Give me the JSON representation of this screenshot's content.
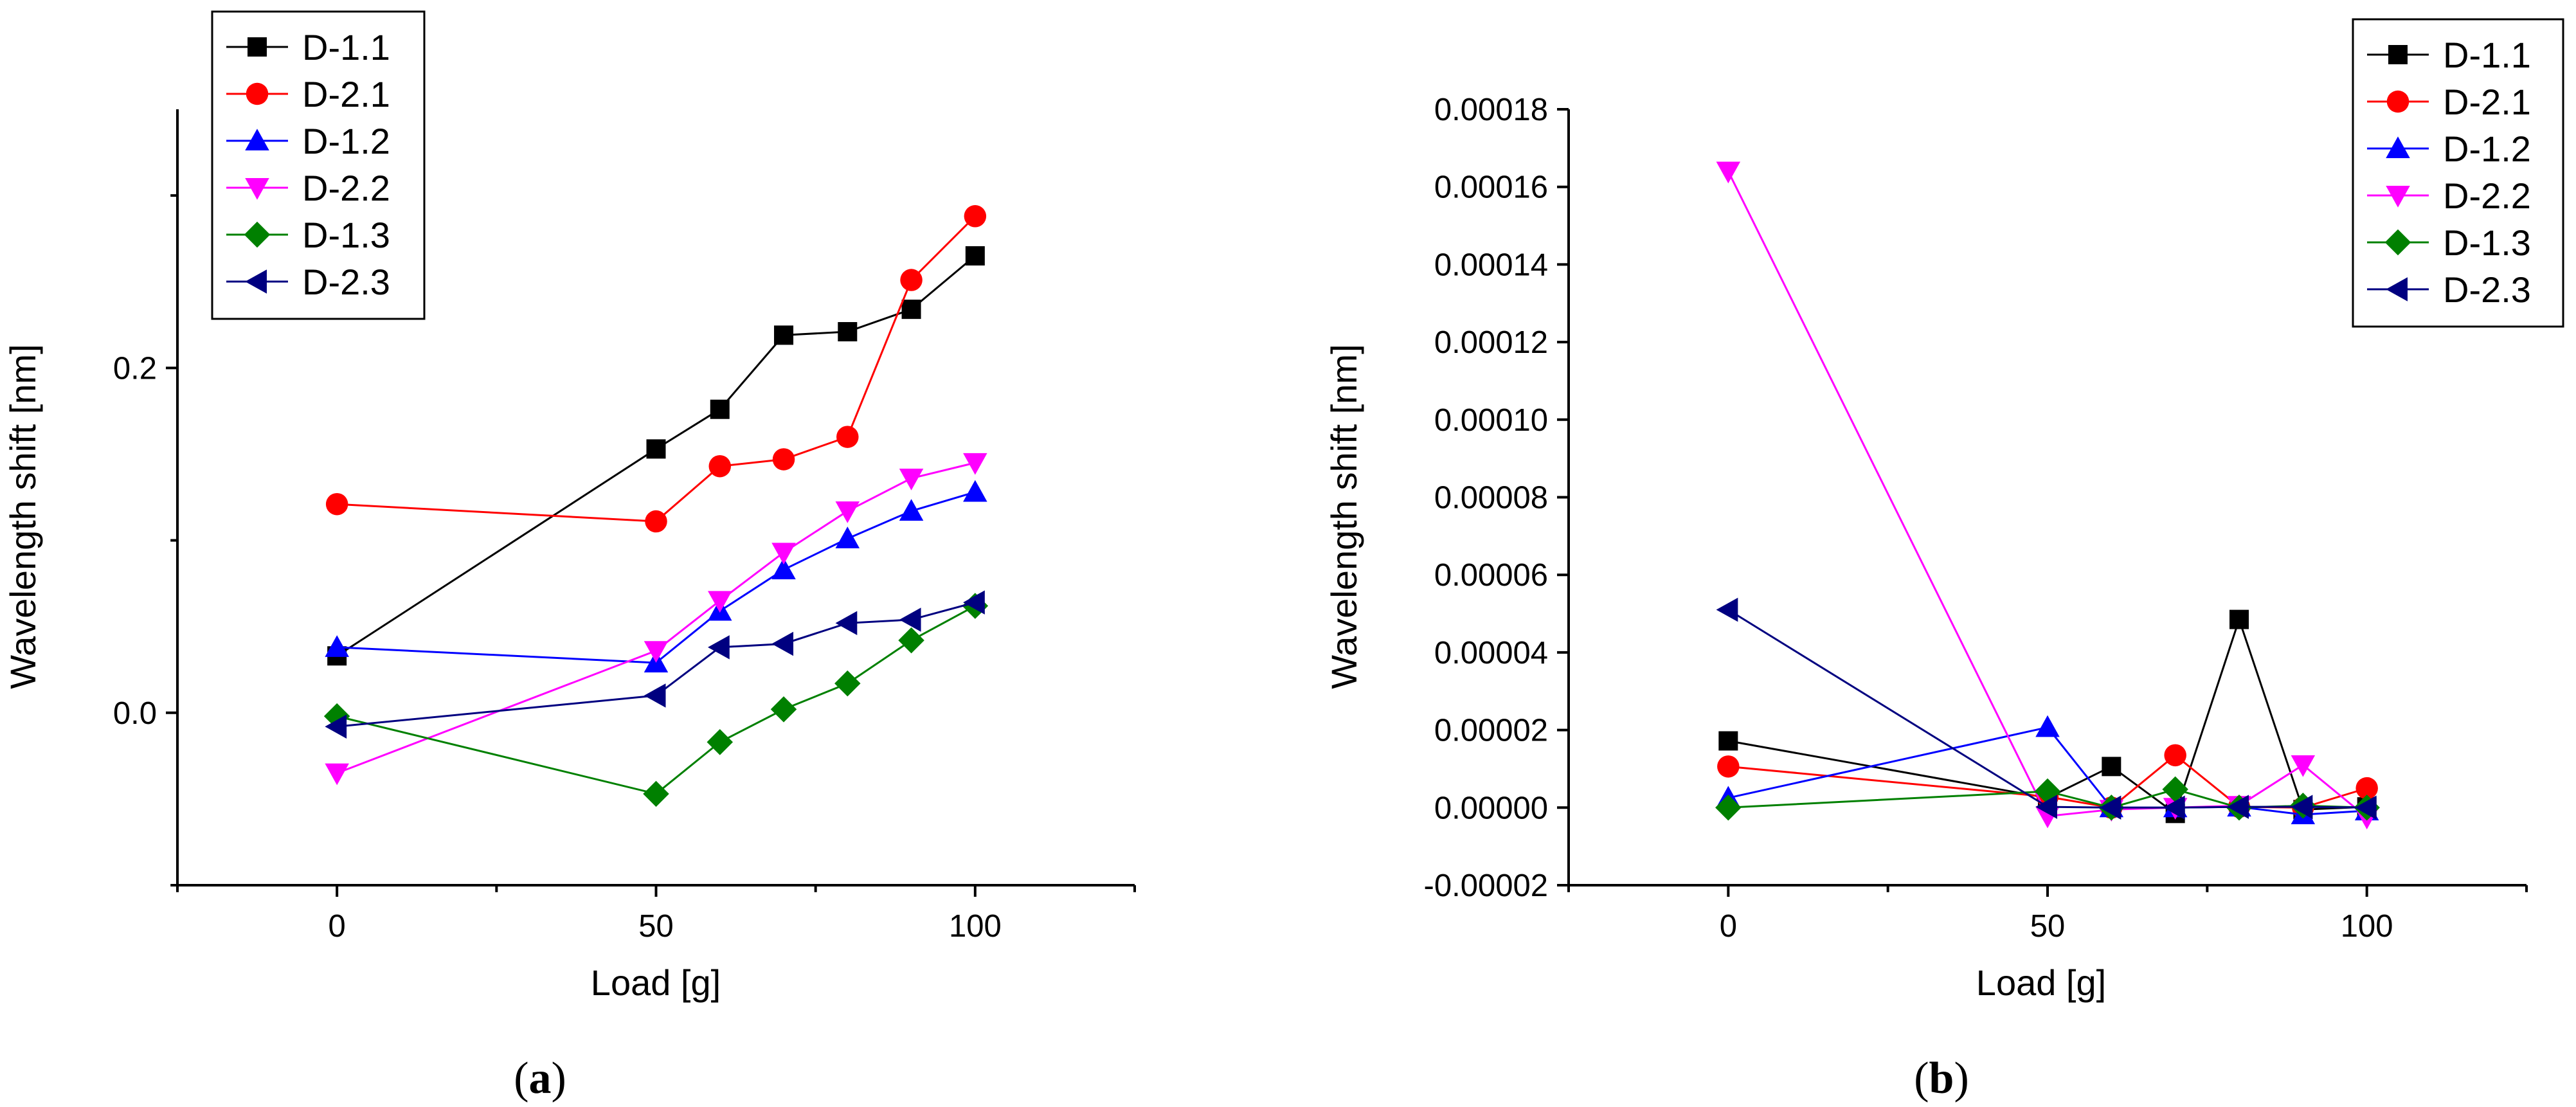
{
  "chart_data": [
    {
      "panel": "a",
      "type": "line",
      "title": "",
      "xlabel": "Load [g]",
      "ylabel": "Wavelength shift [nm]",
      "xlim": [
        -25,
        125
      ],
      "ylim": [
        -0.1,
        0.35
      ],
      "xticks": [
        0,
        50,
        100
      ],
      "yticks": [
        0.0,
        0.2
      ],
      "yticklabels": [
        "0.0",
        "0.2"
      ],
      "legend_position": "top-left",
      "x": [
        0,
        50,
        60,
        70,
        80,
        90,
        100
      ],
      "series": [
        {
          "name": "D-1.1",
          "color": "#000000",
          "marker": "square",
          "values": [
            0.033,
            0.153,
            0.176,
            0.219,
            0.221,
            0.234,
            0.265
          ]
        },
        {
          "name": "D-2.1",
          "color": "#ff0000",
          "marker": "circle",
          "values": [
            0.121,
            0.111,
            0.143,
            0.147,
            0.16,
            0.251,
            0.288
          ]
        },
        {
          "name": "D-1.2",
          "color": "#0000ff",
          "marker": "triangle-up",
          "values": [
            0.038,
            0.029,
            0.059,
            0.083,
            0.101,
            0.117,
            0.128
          ]
        },
        {
          "name": "D-2.2",
          "color": "#ff00ff",
          "marker": "triangle-down",
          "values": [
            -0.035,
            0.036,
            0.065,
            0.093,
            0.117,
            0.136,
            0.145
          ]
        },
        {
          "name": "D-1.3",
          "color": "#008000",
          "marker": "diamond",
          "values": [
            -0.002,
            -0.047,
            -0.017,
            0.002,
            0.017,
            0.042,
            0.062
          ]
        },
        {
          "name": "D-2.3",
          "color": "#000080",
          "marker": "triangle-left",
          "values": [
            -0.008,
            0.01,
            0.038,
            0.04,
            0.052,
            0.054,
            0.064
          ]
        }
      ],
      "caption": "(a)"
    },
    {
      "panel": "b",
      "type": "line",
      "title": "",
      "xlabel": "Load [g]",
      "ylabel": "Wavelength shift [nm]",
      "xlim": [
        -25,
        125
      ],
      "ylim": [
        -2e-05,
        0.00018
      ],
      "xticks": [
        0,
        50,
        100
      ],
      "yticks": [
        -2e-05,
        0,
        2e-05,
        4e-05,
        6e-05,
        8e-05,
        0.0001,
        0.00012,
        0.00014,
        0.00016,
        0.00018
      ],
      "yticklabels": [
        "-0.00002",
        "0.00000",
        "0.00002",
        "0.00004",
        "0.00006",
        "0.00008",
        "0.00010",
        "0.00012",
        "0.00014",
        "0.00016",
        "0.00018"
      ],
      "legend_position": "top-right",
      "x": [
        0,
        50,
        60,
        70,
        80,
        90,
        100
      ],
      "series": [
        {
          "name": "D-1.1",
          "color": "#000000",
          "marker": "square",
          "values": [
            1.72e-05,
            2.5e-06,
            1.06e-05,
            -1.5e-06,
            4.85e-05,
            -5e-07,
            2e-07
          ]
        },
        {
          "name": "D-2.1",
          "color": "#ff0000",
          "marker": "circle",
          "values": [
            1.06e-05,
            2.8e-06,
            0.0,
            1.35e-05,
            2e-07,
            0.0,
            5e-06
          ]
        },
        {
          "name": "D-1.2",
          "color": "#0000ff",
          "marker": "triangle-up",
          "values": [
            2.5e-06,
            2.07e-05,
            0.0,
            0.0,
            2e-07,
            -1.8e-06,
            -8e-07
          ]
        },
        {
          "name": "D-2.2",
          "color": "#ff00ff",
          "marker": "triangle-down",
          "values": [
            0.000164,
            -2.2e-06,
            -5e-07,
            0.0,
            5e-07,
            1.1e-05,
            -2.5e-06
          ]
        },
        {
          "name": "D-1.3",
          "color": "#008000",
          "marker": "diamond",
          "values": [
            0.0,
            4.2e-06,
            0.0,
            4.7e-06,
            0.0,
            5e-07,
            0.0
          ]
        },
        {
          "name": "D-2.3",
          "color": "#000080",
          "marker": "triangle-left",
          "values": [
            5.1e-05,
            2e-07,
            0.0,
            0.0,
            2e-07,
            2e-07,
            0.0
          ]
        }
      ],
      "caption": "(b)"
    }
  ]
}
